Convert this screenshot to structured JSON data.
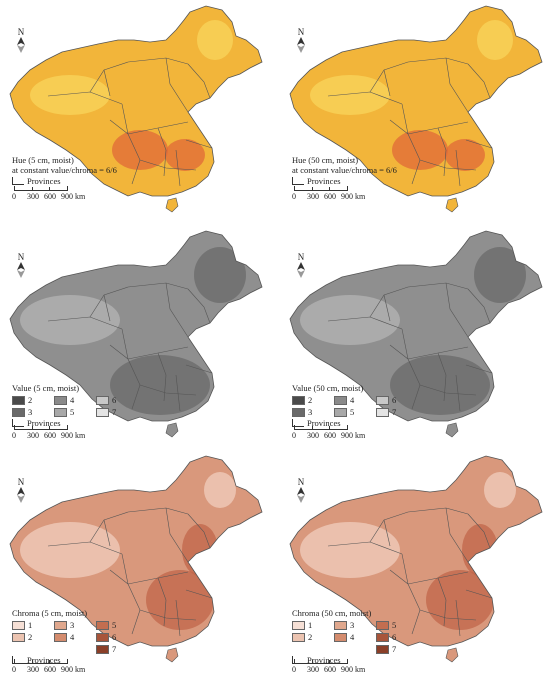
{
  "north_label": "N",
  "colors": {
    "hue_base": "#f2b53a",
    "hue_dark": "#e06a38",
    "hue_light": "#f8d65c",
    "value_base": "#8f8f8f",
    "value_dark": "#6a6a6a",
    "value_light": "#b4b4b4",
    "chroma_base": "#d9987c",
    "chroma_dark": "#c0664a",
    "chroma_light": "#f0cdbd",
    "border": "#555555"
  },
  "panels": [
    {
      "id": "hue-5",
      "title": "Hue (5 cm, moist)",
      "subtitle": "at constant value/chroma = 6/6",
      "provinces": "Provinces",
      "scale": [
        "0",
        "300",
        "600",
        "900 km"
      ]
    },
    {
      "id": "hue-50",
      "title": "Hue (50 cm, moist)",
      "subtitle": "at constant value/chroma = 6/6",
      "provinces": "Provinces",
      "scale": [
        "0",
        "300",
        "600",
        "900 km"
      ]
    },
    {
      "id": "value-5",
      "title": "Value (5 cm, moist)",
      "provinces": "Provinces",
      "scale": [
        "0",
        "300",
        "600",
        "900 km"
      ],
      "classes": [
        {
          "label": "2",
          "color": "#4a4a4a"
        },
        {
          "label": "4",
          "color": "#8a8a8a"
        },
        {
          "label": "6",
          "color": "#c8c8c8"
        },
        {
          "label": "3",
          "color": "#6a6a6a"
        },
        {
          "label": "5",
          "color": "#a8a8a8"
        },
        {
          "label": "7",
          "color": "#e4e4e4"
        }
      ]
    },
    {
      "id": "value-50",
      "title": "Value (50 cm, moist)",
      "provinces": "Provinces",
      "scale": [
        "0",
        "300",
        "600",
        "900 km"
      ],
      "classes": [
        {
          "label": "2",
          "color": "#4a4a4a"
        },
        {
          "label": "4",
          "color": "#8a8a8a"
        },
        {
          "label": "6",
          "color": "#c8c8c8"
        },
        {
          "label": "3",
          "color": "#6a6a6a"
        },
        {
          "label": "5",
          "color": "#a8a8a8"
        },
        {
          "label": "7",
          "color": "#e4e4e4"
        }
      ]
    },
    {
      "id": "chroma-5",
      "title": "Chroma (5 cm, moist)",
      "provinces": "Provinces",
      "scale": [
        "0",
        "300",
        "600",
        "900 km"
      ],
      "classes": [
        {
          "label": "1",
          "color": "#f6e0d6"
        },
        {
          "label": "3",
          "color": "#e0a88e"
        },
        {
          "label": "5",
          "color": "#c26e50"
        },
        {
          "label": "2",
          "color": "#ecc4b1"
        },
        {
          "label": "4",
          "color": "#d48c6e"
        },
        {
          "label": "6",
          "color": "#a8553a"
        },
        {
          "label": "",
          "color": ""
        },
        {
          "label": "",
          "color": ""
        },
        {
          "label": "7",
          "color": "#8a3f28"
        }
      ]
    },
    {
      "id": "chroma-50",
      "title": "Chroma (50 cm, moist)",
      "provinces": "Provinces",
      "scale": [
        "0",
        "300",
        "600",
        "900 km"
      ],
      "classes": [
        {
          "label": "1",
          "color": "#f6e0d6"
        },
        {
          "label": "3",
          "color": "#e0a88e"
        },
        {
          "label": "5",
          "color": "#c26e50"
        },
        {
          "label": "2",
          "color": "#ecc4b1"
        },
        {
          "label": "4",
          "color": "#d48c6e"
        },
        {
          "label": "6",
          "color": "#a8553a"
        },
        {
          "label": "",
          "color": ""
        },
        {
          "label": "",
          "color": ""
        },
        {
          "label": "7",
          "color": "#8a3f28"
        }
      ]
    }
  ]
}
